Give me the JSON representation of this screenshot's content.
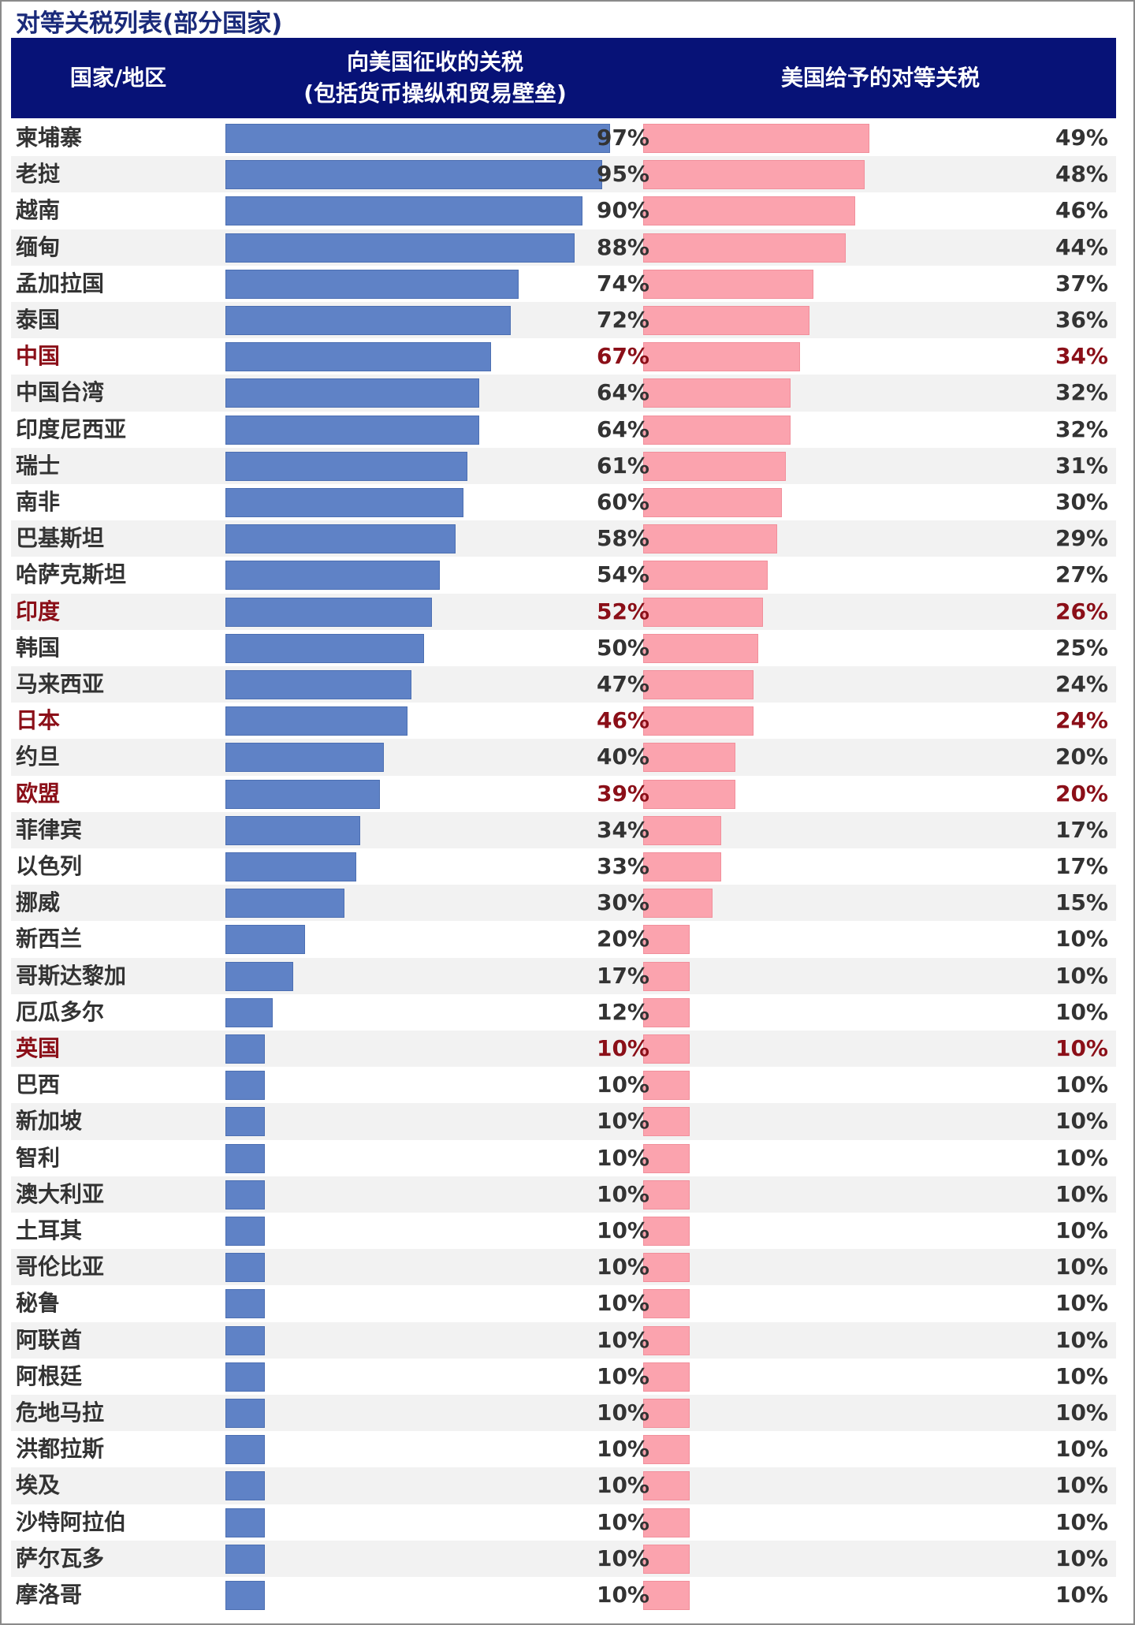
{
  "title": "对等关税列表(部分国家)",
  "header": {
    "country": "国家/地区",
    "left_line1": "向美国征收的关税",
    "left_line2": "(包括货币操纵和贸易壁垒)",
    "right": "美国给予的对等关税"
  },
  "colors": {
    "header_bg": "#071277",
    "left_bar": "#5f82c6",
    "right_bar": "#fba3ae",
    "highlight_text": "#8b0f18"
  },
  "chart_data": {
    "type": "bar",
    "orientation": "horizontal",
    "series": [
      {
        "name": "向美国征收的关税",
        "unit": "%"
      },
      {
        "name": "美国给予的对等关税",
        "unit": "%"
      }
    ],
    "xlim": [
      0,
      100
    ],
    "rows": [
      {
        "country": "柬埔寨",
        "imposed": 97,
        "imposed_label": "97%",
        "reciprocal": 49,
        "reciprocal_label": "49%",
        "highlight": false
      },
      {
        "country": "老挝",
        "imposed": 95,
        "imposed_label": "95%",
        "reciprocal": 48,
        "reciprocal_label": "48%",
        "highlight": false
      },
      {
        "country": "越南",
        "imposed": 90,
        "imposed_label": "90%",
        "reciprocal": 46,
        "reciprocal_label": "46%",
        "highlight": false
      },
      {
        "country": "缅甸",
        "imposed": 88,
        "imposed_label": "88%",
        "reciprocal": 44,
        "reciprocal_label": "44%",
        "highlight": false
      },
      {
        "country": "孟加拉国",
        "imposed": 74,
        "imposed_label": "74%",
        "reciprocal": 37,
        "reciprocal_label": "37%",
        "highlight": false
      },
      {
        "country": "泰国",
        "imposed": 72,
        "imposed_label": "72%",
        "reciprocal": 36,
        "reciprocal_label": "36%",
        "highlight": false
      },
      {
        "country": "中国",
        "imposed": 67,
        "imposed_label": "67%",
        "reciprocal": 34,
        "reciprocal_label": "34%",
        "highlight": true
      },
      {
        "country": "中国台湾",
        "imposed": 64,
        "imposed_label": "64%",
        "reciprocal": 32,
        "reciprocal_label": "32%",
        "highlight": false
      },
      {
        "country": "印度尼西亚",
        "imposed": 64,
        "imposed_label": "64%",
        "reciprocal": 32,
        "reciprocal_label": "32%",
        "highlight": false
      },
      {
        "country": "瑞士",
        "imposed": 61,
        "imposed_label": "61%",
        "reciprocal": 31,
        "reciprocal_label": "31%",
        "highlight": false
      },
      {
        "country": "南非",
        "imposed": 60,
        "imposed_label": "60%",
        "reciprocal": 30,
        "reciprocal_label": "30%",
        "highlight": false
      },
      {
        "country": "巴基斯坦",
        "imposed": 58,
        "imposed_label": "58%",
        "reciprocal": 29,
        "reciprocal_label": "29%",
        "highlight": false
      },
      {
        "country": "哈萨克斯坦",
        "imposed": 54,
        "imposed_label": "54%",
        "reciprocal": 27,
        "reciprocal_label": "27%",
        "highlight": false
      },
      {
        "country": "印度",
        "imposed": 52,
        "imposed_label": "52%",
        "reciprocal": 26,
        "reciprocal_label": "26%",
        "highlight": true
      },
      {
        "country": "韩国",
        "imposed": 50,
        "imposed_label": "50%",
        "reciprocal": 25,
        "reciprocal_label": "25%",
        "highlight": false
      },
      {
        "country": "马来西亚",
        "imposed": 47,
        "imposed_label": "47%",
        "reciprocal": 24,
        "reciprocal_label": "24%",
        "highlight": false
      },
      {
        "country": "日本",
        "imposed": 46,
        "imposed_label": "46%",
        "reciprocal": 24,
        "reciprocal_label": "24%",
        "highlight": true
      },
      {
        "country": "约旦",
        "imposed": 40,
        "imposed_label": "40%",
        "reciprocal": 20,
        "reciprocal_label": "20%",
        "highlight": false
      },
      {
        "country": "欧盟",
        "imposed": 39,
        "imposed_label": "39%",
        "reciprocal": 20,
        "reciprocal_label": "20%",
        "highlight": true
      },
      {
        "country": "菲律宾",
        "imposed": 34,
        "imposed_label": "34%",
        "reciprocal": 17,
        "reciprocal_label": "17%",
        "highlight": false
      },
      {
        "country": "以色列",
        "imposed": 33,
        "imposed_label": "33%",
        "reciprocal": 17,
        "reciprocal_label": "17%",
        "highlight": false
      },
      {
        "country": "挪威",
        "imposed": 30,
        "imposed_label": "30%",
        "reciprocal": 15,
        "reciprocal_label": "15%",
        "highlight": false
      },
      {
        "country": "新西兰",
        "imposed": 20,
        "imposed_label": "20%",
        "reciprocal": 10,
        "reciprocal_label": "10%",
        "highlight": false
      },
      {
        "country": "哥斯达黎加",
        "imposed": 17,
        "imposed_label": "17%",
        "reciprocal": 10,
        "reciprocal_label": "10%",
        "highlight": false
      },
      {
        "country": "厄瓜多尔",
        "imposed": 12,
        "imposed_label": "12%",
        "reciprocal": 10,
        "reciprocal_label": "10%",
        "highlight": false
      },
      {
        "country": "英国",
        "imposed": 10,
        "imposed_label": "10%",
        "reciprocal": 10,
        "reciprocal_label": "10%",
        "highlight": true
      },
      {
        "country": "巴西",
        "imposed": 10,
        "imposed_label": "10%",
        "reciprocal": 10,
        "reciprocal_label": "10%",
        "highlight": false
      },
      {
        "country": "新加坡",
        "imposed": 10,
        "imposed_label": "10%",
        "reciprocal": 10,
        "reciprocal_label": "10%",
        "highlight": false
      },
      {
        "country": "智利",
        "imposed": 10,
        "imposed_label": "10%",
        "reciprocal": 10,
        "reciprocal_label": "10%",
        "highlight": false
      },
      {
        "country": "澳大利亚",
        "imposed": 10,
        "imposed_label": "10%",
        "reciprocal": 10,
        "reciprocal_label": "10%",
        "highlight": false
      },
      {
        "country": "土耳其",
        "imposed": 10,
        "imposed_label": "10%",
        "reciprocal": 10,
        "reciprocal_label": "10%",
        "highlight": false
      },
      {
        "country": "哥伦比亚",
        "imposed": 10,
        "imposed_label": "10%",
        "reciprocal": 10,
        "reciprocal_label": "10%",
        "highlight": false
      },
      {
        "country": "秘鲁",
        "imposed": 10,
        "imposed_label": "10%",
        "reciprocal": 10,
        "reciprocal_label": "10%",
        "highlight": false
      },
      {
        "country": "阿联酋",
        "imposed": 10,
        "imposed_label": "10%",
        "reciprocal": 10,
        "reciprocal_label": "10%",
        "highlight": false
      },
      {
        "country": "阿根廷",
        "imposed": 10,
        "imposed_label": "10%",
        "reciprocal": 10,
        "reciprocal_label": "10%",
        "highlight": false
      },
      {
        "country": "危地马拉",
        "imposed": 10,
        "imposed_label": "10%",
        "reciprocal": 10,
        "reciprocal_label": "10%",
        "highlight": false
      },
      {
        "country": "洪都拉斯",
        "imposed": 10,
        "imposed_label": "10%",
        "reciprocal": 10,
        "reciprocal_label": "10%",
        "highlight": false
      },
      {
        "country": "埃及",
        "imposed": 10,
        "imposed_label": "10%",
        "reciprocal": 10,
        "reciprocal_label": "10%",
        "highlight": false
      },
      {
        "country": "沙特阿拉伯",
        "imposed": 10,
        "imposed_label": "10%",
        "reciprocal": 10,
        "reciprocal_label": "10%",
        "highlight": false
      },
      {
        "country": "萨尔瓦多",
        "imposed": 10,
        "imposed_label": "10%",
        "reciprocal": 10,
        "reciprocal_label": "10%",
        "highlight": false
      },
      {
        "country": "摩洛哥",
        "imposed": 10,
        "imposed_label": "10%",
        "reciprocal": 10,
        "reciprocal_label": "10%",
        "highlight": false
      }
    ]
  }
}
